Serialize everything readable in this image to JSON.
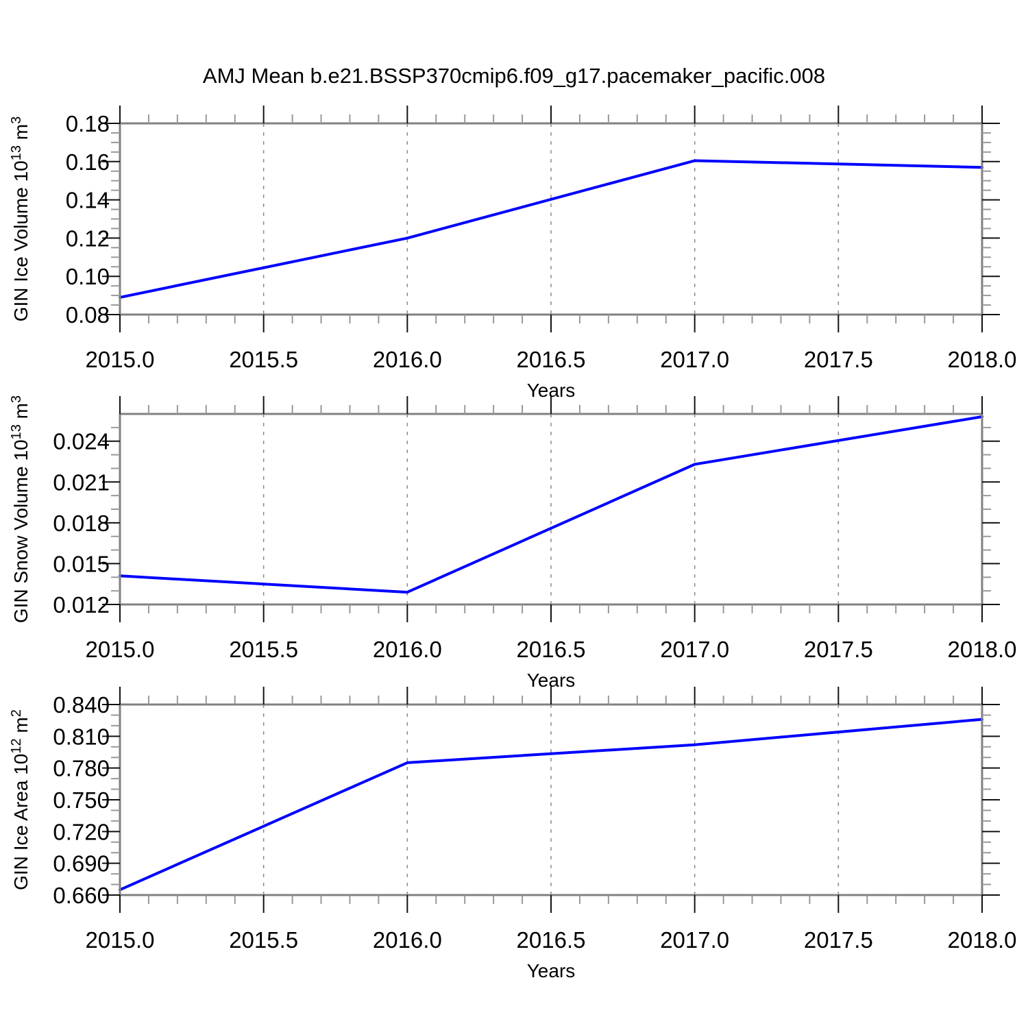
{
  "page_title": "AMJ Mean b.e21.BSSP370cmip6.f09_g17.pacemaker_pacific.008",
  "colors": {
    "line": "#0000ff",
    "frame": "#808080",
    "major_tick": "#111111",
    "minor_tick": "#999999",
    "grid": "#888888",
    "text": "#000000",
    "background": "#ffffff"
  },
  "chart_data": [
    {
      "name": "gin-ice-volume",
      "type": "line",
      "title": "",
      "x": [
        2015.0,
        2016.0,
        2017.0,
        2018.0
      ],
      "values": [
        0.089,
        0.12,
        0.1605,
        0.157
      ],
      "xlabel": "Years",
      "ylabel": "GIN Ice Volume 10¹³ m³",
      "ylabel_parts": [
        {
          "text": "GIN Ice Volume 10"
        },
        {
          "text": "13",
          "sup": true
        },
        {
          "text": " m"
        },
        {
          "text": "3",
          "sup": true
        }
      ],
      "xlim": [
        2015.0,
        2018.0
      ],
      "ylim": [
        0.08,
        0.18
      ],
      "yticks_major": [
        0.18,
        0.16,
        0.14,
        0.12,
        0.1,
        0.08
      ],
      "ytick_labels": [
        "0.18",
        "0.16",
        "0.14",
        "0.12",
        "0.10",
        "0.08"
      ],
      "ytick_minor_step": 0.005,
      "xticks_major": [
        2015.0,
        2015.5,
        2016.0,
        2016.5,
        2017.0,
        2017.5,
        2018.0
      ],
      "xtick_labels": [
        "2015.0",
        "2015.5",
        "2016.0",
        "2016.5",
        "2017.0",
        "2017.5",
        "2018.0"
      ],
      "xtick_minor_step": 0.1,
      "gridlines_x": [
        2015.5,
        2016.0,
        2016.5,
        2017.0,
        2017.5
      ],
      "grid_style": "vertical dashed",
      "legend": "none",
      "line_color": "#0000ff"
    },
    {
      "name": "gin-snow-volume",
      "type": "line",
      "title": "",
      "x": [
        2015.0,
        2016.0,
        2017.0,
        2018.0
      ],
      "values": [
        0.0141,
        0.0129,
        0.0223,
        0.0258
      ],
      "xlabel": "Years",
      "ylabel": "GIN Snow Volume 10¹³ m³",
      "ylabel_parts": [
        {
          "text": "GIN Snow Volume 10"
        },
        {
          "text": "13",
          "sup": true
        },
        {
          "text": " m"
        },
        {
          "text": "3",
          "sup": true
        }
      ],
      "xlim": [
        2015.0,
        2018.0
      ],
      "ylim": [
        0.012,
        0.026
      ],
      "yticks_major": [
        0.024,
        0.021,
        0.018,
        0.015,
        0.012
      ],
      "ytick_labels": [
        "0.024",
        "0.021",
        "0.018",
        "0.015",
        "0.012"
      ],
      "ytick_minor_step": 0.001,
      "xticks_major": [
        2015.0,
        2015.5,
        2016.0,
        2016.5,
        2017.0,
        2017.5,
        2018.0
      ],
      "xtick_labels": [
        "2015.0",
        "2015.5",
        "2016.0",
        "2016.5",
        "2017.0",
        "2017.5",
        "2018.0"
      ],
      "xtick_minor_step": 0.1,
      "gridlines_x": [
        2015.5,
        2016.0,
        2016.5,
        2017.0,
        2017.5
      ],
      "grid_style": "vertical dashed",
      "legend": "none",
      "line_color": "#0000ff"
    },
    {
      "name": "gin-ice-area",
      "type": "line",
      "title": "",
      "x": [
        2015.0,
        2016.0,
        2017.0,
        2018.0
      ],
      "values": [
        0.665,
        0.785,
        0.802,
        0.826
      ],
      "xlabel": "Years",
      "ylabel": "GIN Ice Area 10¹² m²",
      "ylabel_parts": [
        {
          "text": "GIN Ice Area 10"
        },
        {
          "text": "12",
          "sup": true
        },
        {
          "text": " m"
        },
        {
          "text": "2",
          "sup": true
        }
      ],
      "xlim": [
        2015.0,
        2018.0
      ],
      "ylim": [
        0.66,
        0.84
      ],
      "yticks_major": [
        0.84,
        0.81,
        0.78,
        0.75,
        0.72,
        0.69,
        0.66
      ],
      "ytick_labels": [
        "0.840",
        "0.810",
        "0.780",
        "0.750",
        "0.720",
        "0.690",
        "0.660"
      ],
      "ytick_minor_step": 0.01,
      "xticks_major": [
        2015.0,
        2015.5,
        2016.0,
        2016.5,
        2017.0,
        2017.5,
        2018.0
      ],
      "xtick_labels": [
        "2015.0",
        "2015.5",
        "2016.0",
        "2016.5",
        "2017.0",
        "2017.5",
        "2018.0"
      ],
      "xtick_minor_step": 0.1,
      "gridlines_x": [
        2015.5,
        2016.0,
        2016.5,
        2017.0,
        2017.5
      ],
      "grid_style": "vertical dashed",
      "legend": "none",
      "line_color": "#0000ff"
    }
  ]
}
